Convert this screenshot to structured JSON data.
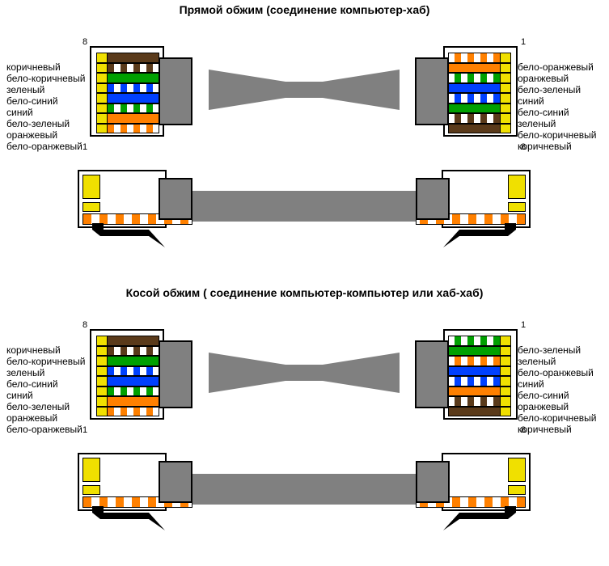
{
  "sections": [
    {
      "title": "Прямой обжим (соединение компьютер-хаб)",
      "left_pin_top": "8",
      "left_pin_bottom": "1",
      "right_pin_top": "1",
      "right_pin_bottom": "8",
      "left_labels": [
        "коричневый",
        "бело-коричневый",
        "зеленый",
        "бело-синий",
        "синий",
        "бело-зеленый",
        "оранжевый",
        "бело-оранжевый"
      ],
      "right_labels": [
        "бело-оранжевый",
        "оранжевый",
        "бело-зеленый",
        "синий",
        "бело-синий",
        "зеленый",
        "бело-коричневый",
        "коричневый"
      ],
      "left_wires": [
        {
          "color": "#5a3a1a",
          "striped": false
        },
        {
          "color": "#5a3a1a",
          "striped": true
        },
        {
          "color": "#00a000",
          "striped": false
        },
        {
          "color": "#0040ff",
          "striped": true
        },
        {
          "color": "#0040ff",
          "striped": false
        },
        {
          "color": "#00a000",
          "striped": true
        },
        {
          "color": "#ff8000",
          "striped": false
        },
        {
          "color": "#ff8000",
          "striped": true
        }
      ],
      "right_wires": [
        {
          "color": "#ff8000",
          "striped": true
        },
        {
          "color": "#ff8000",
          "striped": false
        },
        {
          "color": "#00a000",
          "striped": true
        },
        {
          "color": "#0040ff",
          "striped": false
        },
        {
          "color": "#0040ff",
          "striped": true
        },
        {
          "color": "#00a000",
          "striped": false
        },
        {
          "color": "#5a3a1a",
          "striped": true
        },
        {
          "color": "#5a3a1a",
          "striped": false
        }
      ]
    },
    {
      "title": "Косой обжим ( соединение компьютер-компьютер или хаб-хаб)",
      "left_pin_top": "8",
      "left_pin_bottom": "1",
      "right_pin_top": "1",
      "right_pin_bottom": "8",
      "left_labels": [
        "коричневый",
        "бело-коричневый",
        "зеленый",
        "бело-синий",
        "синий",
        "бело-зеленый",
        "оранжевый",
        "бело-оранжевый"
      ],
      "right_labels": [
        "бело-зеленый",
        "зеленый",
        "бело-оранжевый",
        "синий",
        "бело-синий",
        "оранжевый",
        "бело-коричневый",
        "коричневый"
      ],
      "left_wires": [
        {
          "color": "#5a3a1a",
          "striped": false
        },
        {
          "color": "#5a3a1a",
          "striped": true
        },
        {
          "color": "#00a000",
          "striped": false
        },
        {
          "color": "#0040ff",
          "striped": true
        },
        {
          "color": "#0040ff",
          "striped": false
        },
        {
          "color": "#00a000",
          "striped": true
        },
        {
          "color": "#ff8000",
          "striped": false
        },
        {
          "color": "#ff8000",
          "striped": true
        }
      ],
      "right_wires": [
        {
          "color": "#00a000",
          "striped": true
        },
        {
          "color": "#00a000",
          "striped": false
        },
        {
          "color": "#ff8000",
          "striped": true
        },
        {
          "color": "#0040ff",
          "striped": false
        },
        {
          "color": "#0040ff",
          "striped": true
        },
        {
          "color": "#ff8000",
          "striped": false
        },
        {
          "color": "#5a3a1a",
          "striped": true
        },
        {
          "color": "#5a3a1a",
          "striped": false
        }
      ]
    }
  ],
  "colors": {
    "gold": "#f0e000",
    "gray": "#808080",
    "border": "#000000"
  }
}
